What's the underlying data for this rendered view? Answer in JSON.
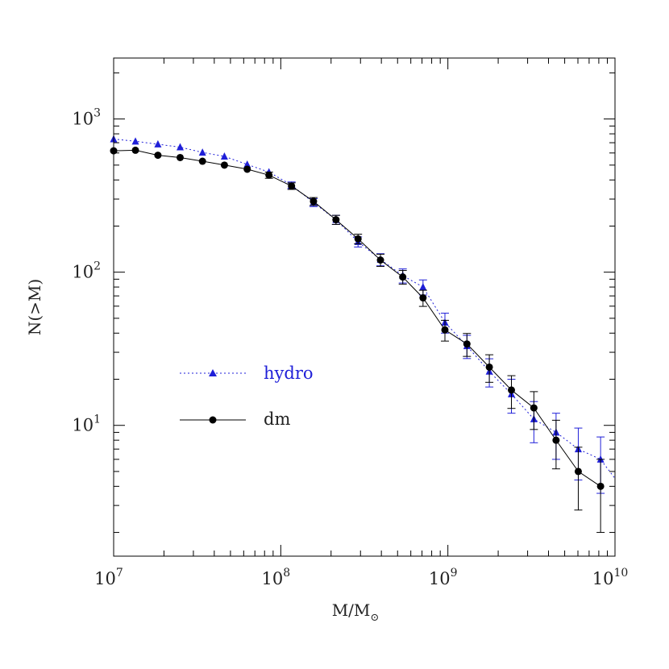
{
  "chart_data": {
    "type": "line",
    "title": "",
    "xlabel": "M/M",
    "xlabel_sub": "⊙",
    "ylabel": "N(>M)",
    "xscale": "log",
    "yscale": "log",
    "xlim": [
      10000000,
      10000000000
    ],
    "ylim": [
      1.4,
      2500
    ],
    "x_ticks": [
      {
        "base": "10",
        "exp": "7",
        "value": 10000000
      },
      {
        "base": "10",
        "exp": "8",
        "value": 100000000
      },
      {
        "base": "10",
        "exp": "9",
        "value": 1000000000
      },
      {
        "base": "10",
        "exp": "10",
        "value": 10000000000
      }
    ],
    "y_ticks": [
      {
        "base": "10",
        "exp": "1",
        "value": 10
      },
      {
        "base": "10",
        "exp": "2",
        "value": 100
      },
      {
        "base": "10",
        "exp": "3",
        "value": 1000
      }
    ],
    "legend_position": "middle-left",
    "series": [
      {
        "name": "hydro",
        "color": "#1f1fd8",
        "marker": "triangle",
        "line_style": "dotted",
        "x": [
          10000000,
          13500000,
          18400000,
          25000000,
          34000000,
          46000000,
          63000000,
          85000000,
          116000000,
          157000000,
          214000000,
          290000000,
          395000000,
          537000000,
          710000000,
          960000000,
          1300000000,
          1770000000,
          2400000000,
          3270000000,
          4440000000,
          6030000000,
          8200000000,
          10000000000
        ],
        "y": [
          740,
          715,
          685,
          655,
          605,
          570,
          505,
          450,
          370,
          285,
          220,
          158,
          121,
          95,
          80,
          47,
          33,
          22.5,
          16,
          11,
          9,
          7,
          6,
          4.5
        ],
        "err": [
          null,
          null,
          null,
          null,
          null,
          null,
          null,
          null,
          18,
          17,
          15,
          12,
          11,
          10,
          9,
          7,
          5.7,
          4.7,
          4,
          3.3,
          3,
          2.6,
          2.4,
          null
        ]
      },
      {
        "name": "dm",
        "color": "#000000",
        "marker": "circle",
        "line_style": "solid",
        "x": [
          10000000,
          13500000,
          18400000,
          25000000,
          34000000,
          46000000,
          63000000,
          85000000,
          116000000,
          157000000,
          214000000,
          290000000,
          395000000,
          537000000,
          710000000,
          960000000,
          1300000000,
          1770000000,
          2400000000,
          3270000000,
          4440000000,
          6030000000,
          8200000000
        ],
        "y": [
          620,
          625,
          580,
          560,
          530,
          500,
          470,
          430,
          365,
          290,
          220,
          165,
          120,
          93,
          68,
          42,
          34,
          24,
          17,
          13,
          8,
          5,
          4
        ],
        "err": [
          null,
          null,
          null,
          null,
          null,
          null,
          null,
          20,
          18,
          17,
          15,
          12,
          11,
          9.6,
          8.2,
          6.5,
          5.8,
          4.9,
          4.1,
          3.6,
          2.8,
          2.2,
          2
        ]
      }
    ]
  }
}
